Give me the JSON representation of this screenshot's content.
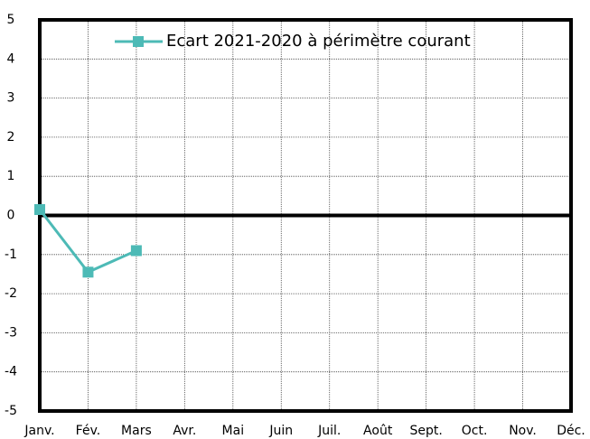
{
  "chart_data": {
    "type": "line",
    "categories": [
      "Janv.",
      "Fév.",
      "Mars",
      "Avr.",
      "Mai",
      "Juin",
      "Juil.",
      "Août",
      "Sept.",
      "Oct.",
      "Nov.",
      "Déc."
    ],
    "series": [
      {
        "name": "Ecart 2021-2020 à périmètre courant",
        "color": "#4dbab6",
        "values": [
          0.15,
          -1.45,
          -0.9,
          null,
          null,
          null,
          null,
          null,
          null,
          null,
          null,
          null
        ]
      }
    ],
    "ylim": [
      -5,
      5
    ],
    "yticks": [
      -5,
      -4,
      -3,
      -2,
      -1,
      0,
      1,
      2,
      3,
      4,
      5
    ],
    "grid": true,
    "legend": "top"
  }
}
